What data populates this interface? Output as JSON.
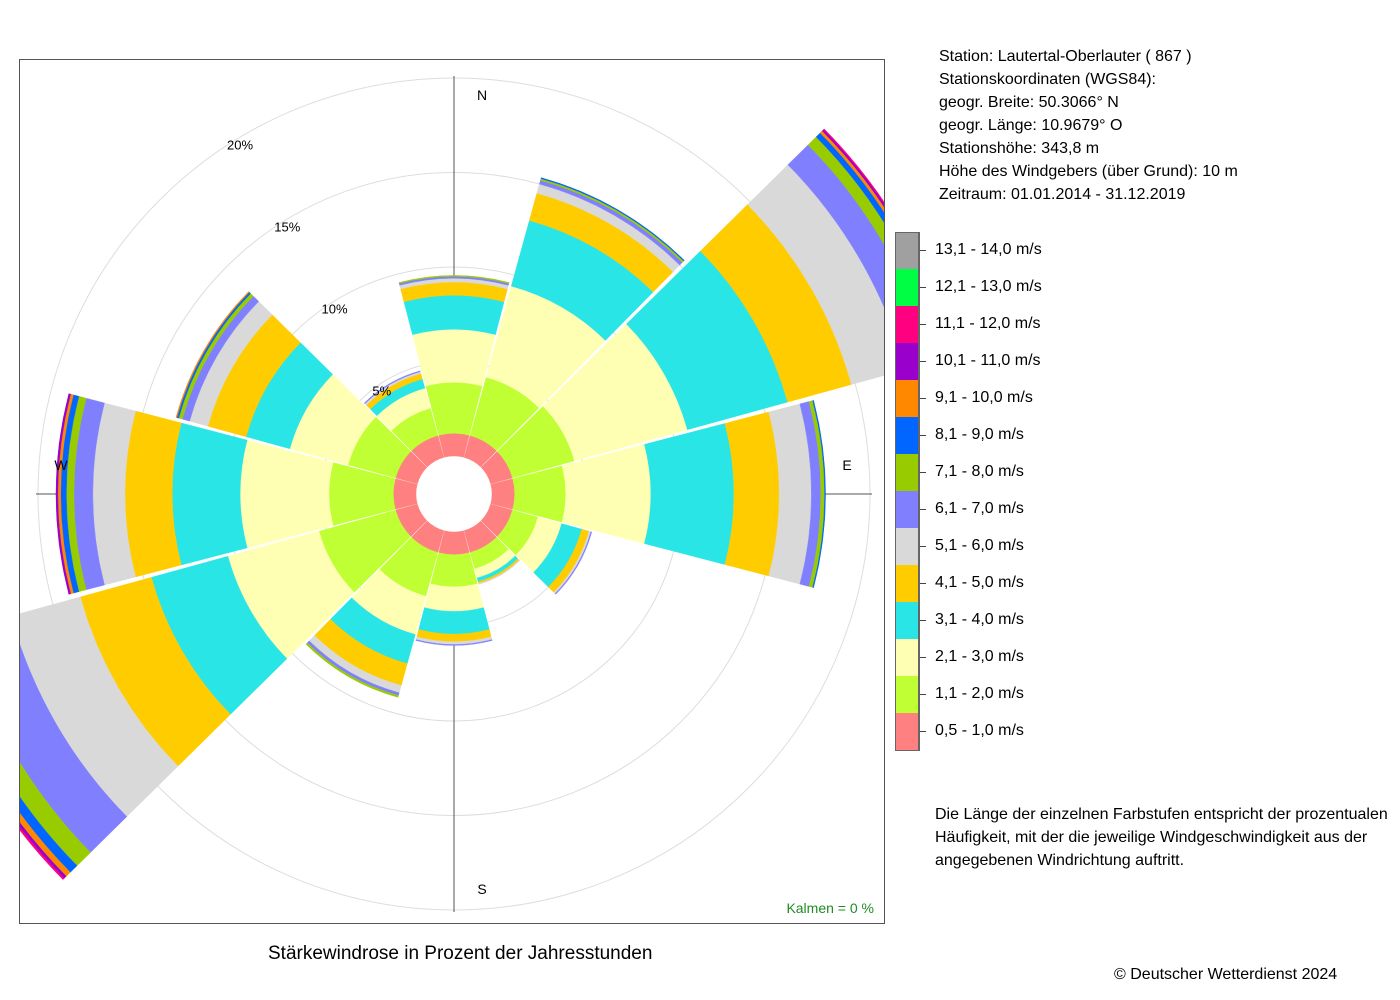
{
  "title": "Stärkewindrose in Prozent der Jahresstunden",
  "station": {
    "lines": [
      "Station:  Lautertal-Oberlauter  ( 867 )",
      "Stationskoordinaten (WGS84):",
      "geogr. Breite: 50.3066° N",
      "geogr. Länge: 10.9679° O",
      "Stationshöhe: 343,8 m",
      "Höhe des Windgebers (über Grund): 10 m",
      "Zeitraum: 01.01.2014 - 31.12.2019"
    ]
  },
  "note_lines": [
    "Die Länge der einzelnen Farbstufen entspricht der prozentualen",
    "Häufigkeit, mit der die jeweilige Windgeschwindigkeit aus der",
    "angegebenen Windrichtung auftritt."
  ],
  "copyright": "© Deutscher Wetterdienst  2024",
  "calm_text": "Kalmen  =  0 %",
  "colors": {
    "calm_text": "#228b22",
    "grid": "#dddddd",
    "axis": "#555555"
  },
  "chart_data": {
    "type": "windrose",
    "unit": "%",
    "radial_ticks": [
      {
        "value": 5,
        "label": "5%"
      },
      {
        "value": 10,
        "label": "10%"
      },
      {
        "value": 15,
        "label": "15%"
      },
      {
        "value": 20,
        "label": "20%"
      }
    ],
    "rmax": 20,
    "direction_labels": [
      {
        "angle": 0,
        "label": "N"
      },
      {
        "angle": 90,
        "label": "E"
      },
      {
        "angle": 180,
        "label": "S"
      },
      {
        "angle": 270,
        "label": "W"
      }
    ],
    "speed_classes": [
      {
        "label": "0,5 - 1,0 m/s",
        "color": "#ff8080"
      },
      {
        "label": "1,1 - 2,0 m/s",
        "color": "#bfff33"
      },
      {
        "label": "2,1 - 3,0 m/s",
        "color": "#ffffb3"
      },
      {
        "label": "3,1 - 4,0 m/s",
        "color": "#29e5e5"
      },
      {
        "label": "4,1 - 5,0 m/s",
        "color": "#ffcc00"
      },
      {
        "label": "5,1 - 6,0 m/s",
        "color": "#d9d9d9"
      },
      {
        "label": "6,1 - 7,0 m/s",
        "color": "#8080ff"
      },
      {
        "label": "7,1 - 8,0 m/s",
        "color": "#99cc00"
      },
      {
        "label": "8,1 - 9,0 m/s",
        "color": "#0066ff"
      },
      {
        "label": "9,1 - 10,0 m/s",
        "color": "#ff8800"
      },
      {
        "label": "10,1 - 11,0 m/s",
        "color": "#9900cc"
      },
      {
        "label": "11,1 - 12,0 m/s",
        "color": "#ff0080"
      },
      {
        "label": "12,1 - 13,0 m/s",
        "color": "#00ff44"
      },
      {
        "label": "13,1 - 14,0 m/s",
        "color": "#a0a0a0"
      }
    ],
    "sectors": [
      {
        "direction": 0,
        "values": [
          1.2,
          2.7,
          2.8,
          1.8,
          0.7,
          0.2,
          0.1,
          0.05
        ]
      },
      {
        "direction": 30,
        "values": [
          1.2,
          3.2,
          5.0,
          3.6,
          1.5,
          0.5,
          0.2,
          0.1,
          0.05
        ]
      },
      {
        "direction": 60,
        "values": [
          1.2,
          3.4,
          6.2,
          5.5,
          3.5,
          3.0,
          1.5,
          0.6,
          0.3,
          0.15,
          0.1,
          0.05
        ]
      },
      {
        "direction": 90,
        "values": [
          1.2,
          2.7,
          4.5,
          4.4,
          2.4,
          1.7,
          0.5,
          0.2,
          0.05
        ]
      },
      {
        "direction": 120,
        "values": [
          1.2,
          1.4,
          1.3,
          1.1,
          0.4,
          0.1,
          0.05
        ]
      },
      {
        "direction": 150,
        "values": [
          1.2,
          0.9,
          0.5,
          0.2,
          0.1,
          0.05
        ]
      },
      {
        "direction": 180,
        "values": [
          1.2,
          1.7,
          1.3,
          1.2,
          0.4,
          0.15,
          0.05
        ]
      },
      {
        "direction": 210,
        "values": [
          1.2,
          2.4,
          2.1,
          1.6,
          1.2,
          0.4,
          0.15,
          0.1
        ]
      },
      {
        "direction": 240,
        "values": [
          1.2,
          4.2,
          5.0,
          4.2,
          3.9,
          3.8,
          2.7,
          1.0,
          0.5,
          0.3,
          0.15,
          0.1
        ]
      },
      {
        "direction": 270,
        "values": [
          1.2,
          3.4,
          4.7,
          3.6,
          2.5,
          1.7,
          1.0,
          0.4,
          0.3,
          0.15,
          0.1
        ]
      },
      {
        "direction": 300,
        "values": [
          1.2,
          2.6,
          3.2,
          2.4,
          2.1,
          1.0,
          0.4,
          0.2,
          0.1,
          0.05
        ]
      },
      {
        "direction": 330,
        "values": [
          1.2,
          1.5,
          1.1,
          0.5,
          0.3,
          0.1,
          0.05
        ]
      }
    ]
  }
}
